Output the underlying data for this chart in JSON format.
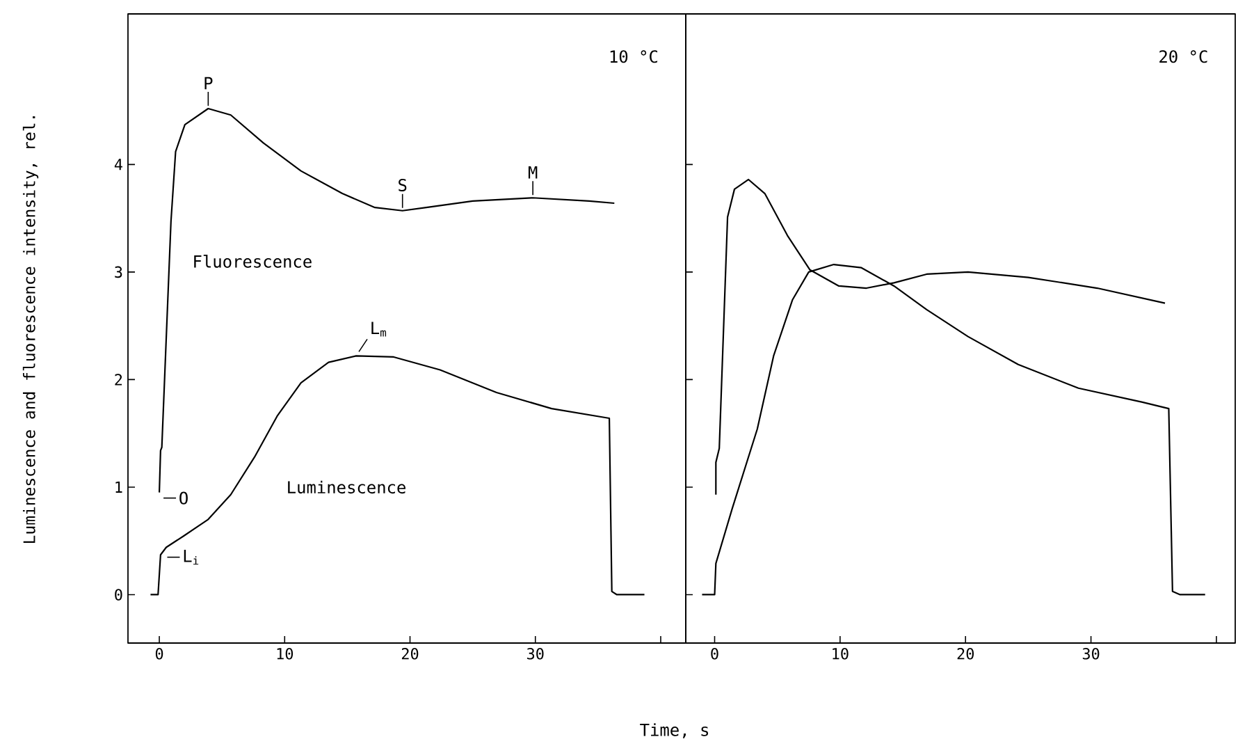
{
  "chart_data": [
    {
      "type": "line",
      "title": "10 °C",
      "xlabel": "Time, s",
      "ylabel": "Luminescence and fluorescence intensity, rel.",
      "xlim": [
        -2.5,
        42
      ],
      "ylim": [
        -0.45,
        5.4
      ],
      "xticks": [
        0,
        10,
        20,
        30,
        {
          "value": 40,
          "label": null
        }
      ],
      "yticks": [
        0,
        1,
        2,
        3,
        4
      ],
      "series": [
        {
          "name": "Fluorescence",
          "color": "#000000",
          "x": [
            0,
            0.1,
            0.2,
            0.93,
            1.3,
            2.04,
            3.9,
            5.7,
            8.3,
            11.3,
            14.6,
            17.2,
            19.4,
            21.3,
            25,
            29.8,
            34.3,
            36.3
          ],
          "values": [
            0.95,
            1.34,
            1.37,
            3.47,
            4.12,
            4.37,
            4.52,
            4.46,
            4.2,
            3.94,
            3.73,
            3.6,
            3.57,
            3.6,
            3.66,
            3.69,
            3.66,
            3.64
          ]
        },
        {
          "name": "Luminescence",
          "color": "#000000",
          "x": [
            -0.7,
            -0.1,
            0.1,
            0.55,
            2.0,
            3.9,
            5.7,
            7.6,
            9.4,
            11.3,
            13.5,
            15.7,
            18.7,
            22.4,
            26.9,
            31.3,
            35.9,
            36.1,
            36.5,
            38.7
          ],
          "values": [
            0,
            0,
            0.37,
            0.44,
            0.55,
            0.7,
            0.93,
            1.28,
            1.66,
            1.97,
            2.16,
            2.22,
            2.21,
            2.09,
            1.88,
            1.73,
            1.64,
            0.03,
            0,
            0
          ]
        }
      ],
      "annotations": [
        {
          "text": "P",
          "x": 3.9,
          "y": 4.52
        },
        {
          "text": "S",
          "x": 19.4,
          "y": 3.57
        },
        {
          "text": "M",
          "x": 29.8,
          "y": 3.69
        },
        {
          "text": "L$_{m}$",
          "x": 15.7,
          "y": 2.22
        },
        {
          "text": "O",
          "x": 0,
          "y": 0.95
        },
        {
          "text": "L$_{i}$",
          "x": 0.3,
          "y": 0.4
        }
      ]
    },
    {
      "type": "line",
      "title": "20 °C",
      "xlim": [
        -2.3,
        41.5
      ],
      "ylim": [
        -0.45,
        5.4
      ],
      "xticks": [
        0,
        10,
        20,
        30,
        {
          "value": 40,
          "label": null
        }
      ],
      "yticks": [
        0,
        1,
        2,
        3,
        4
      ],
      "tick_labels": "x",
      "series": [
        {
          "color": "#000000",
          "x": [
            0.1,
            0.1,
            0.37,
            1.03,
            1.58,
            2.7,
            4.0,
            5.8,
            7.6,
            9.9,
            12.1,
            14.3,
            16.9,
            20.2,
            25,
            30.5,
            35.9
          ],
          "values": [
            0.93,
            1.23,
            1.36,
            3.51,
            3.77,
            3.86,
            3.73,
            3.34,
            3.02,
            2.87,
            2.85,
            2.9,
            2.98,
            3.0,
            2.95,
            2.85,
            2.71
          ]
        },
        {
          "color": "#000000",
          "x": [
            -1.0,
            0,
            0.1,
            1.4,
            3.4,
            4.7,
            6.2,
            7.5,
            9.5,
            11.7,
            14.3,
            16.9,
            20.2,
            24.2,
            29.0,
            34.1,
            36.2,
            36.5,
            37.1,
            39.1
          ],
          "values": [
            0,
            0,
            0.29,
            0.8,
            1.54,
            2.22,
            2.74,
            3.0,
            3.07,
            3.04,
            2.87,
            2.65,
            2.4,
            2.14,
            1.92,
            1.79,
            1.73,
            0.03,
            0,
            0
          ]
        }
      ]
    }
  ]
}
